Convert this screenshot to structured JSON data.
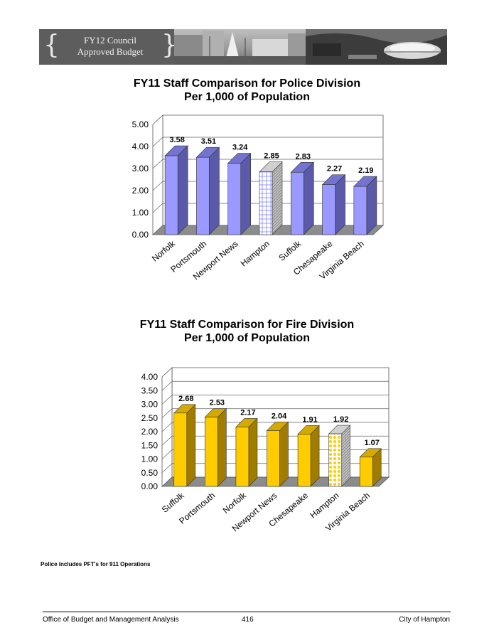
{
  "header": {
    "title_line1": "FY12 Council",
    "title_line2": "Approved Budget"
  },
  "chart_data": [
    {
      "type": "bar",
      "title_line1": "FY11 Staff Comparison for Police Division",
      "title_line2": "Per 1,000 of Population",
      "categories": [
        "Norfolk",
        "Portsmouth",
        "Newport News",
        "Hampton",
        "Suffolk",
        "Chesapeake",
        "Virginia Beach"
      ],
      "values": [
        3.58,
        3.51,
        3.24,
        2.85,
        2.83,
        2.27,
        2.19
      ],
      "value_labels": [
        "3.58",
        "3.51",
        "3.24",
        "2.85",
        "2.83",
        "2.27",
        "2.19"
      ],
      "ylim": [
        0,
        5
      ],
      "yticks": [
        "0.00",
        "1.00",
        "2.00",
        "3.00",
        "4.00",
        "5.00"
      ],
      "highlight": "Hampton",
      "grid": true,
      "colors": {
        "face": "#9999ff",
        "side": "#5a5aa8",
        "top": "#7474d0"
      }
    },
    {
      "type": "bar",
      "title_line1": "FY11 Staff Comparison for Fire Division",
      "title_line2": "Per 1,000 of Population",
      "categories": [
        "Suffolk",
        "Portsmouth",
        "Norfolk",
        "Newport News",
        "Chesapeake",
        "Hampton",
        "Virginia Beach"
      ],
      "values": [
        2.68,
        2.53,
        2.17,
        2.04,
        1.91,
        1.92,
        1.07
      ],
      "value_labels": [
        "2.68",
        "2.53",
        "2.17",
        "2.04",
        "1.91",
        "1.92",
        "1.07"
      ],
      "ylim": [
        0,
        4
      ],
      "yticks": [
        "0.00",
        "0.50",
        "1.00",
        "1.50",
        "2.00",
        "2.50",
        "3.00",
        "3.50",
        "4.00"
      ],
      "highlight": "Hampton",
      "grid": true,
      "colors": {
        "face": "#ffcc00",
        "side": "#a07d00",
        "top": "#d4aa00"
      }
    }
  ],
  "note": "Police includes PFT's for 911 Operations",
  "footer": {
    "left": "Office of Budget and Management Analysis",
    "page": "416",
    "right": "City of Hampton"
  }
}
